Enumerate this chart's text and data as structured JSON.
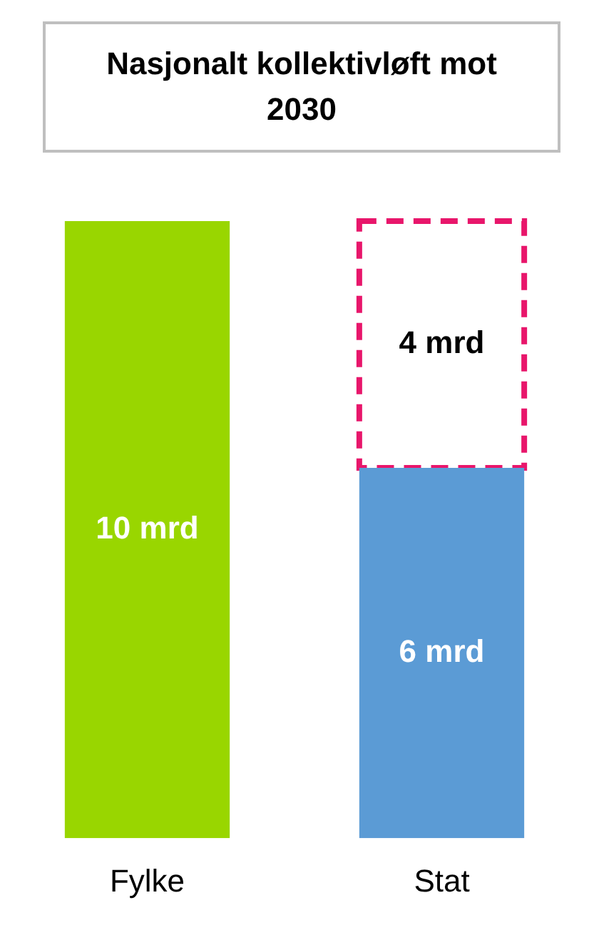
{
  "chart_data": {
    "type": "bar",
    "title": "Nasjonalt kollektivløft mot 2030",
    "categories": [
      "Fylke",
      "Stat"
    ],
    "stacked": true,
    "legend": false,
    "grid": false,
    "series": [
      {
        "colors": [
          "#99d600",
          "#5b9bd5"
        ],
        "values": [
          10,
          6
        ],
        "value_labels": [
          "10 mrd",
          "6 mrd"
        ]
      },
      {
        "color": "#e8166b",
        "line_style": "dashed",
        "values": [
          null,
          4
        ],
        "value_labels": [
          null,
          "4 mrd"
        ]
      }
    ]
  }
}
